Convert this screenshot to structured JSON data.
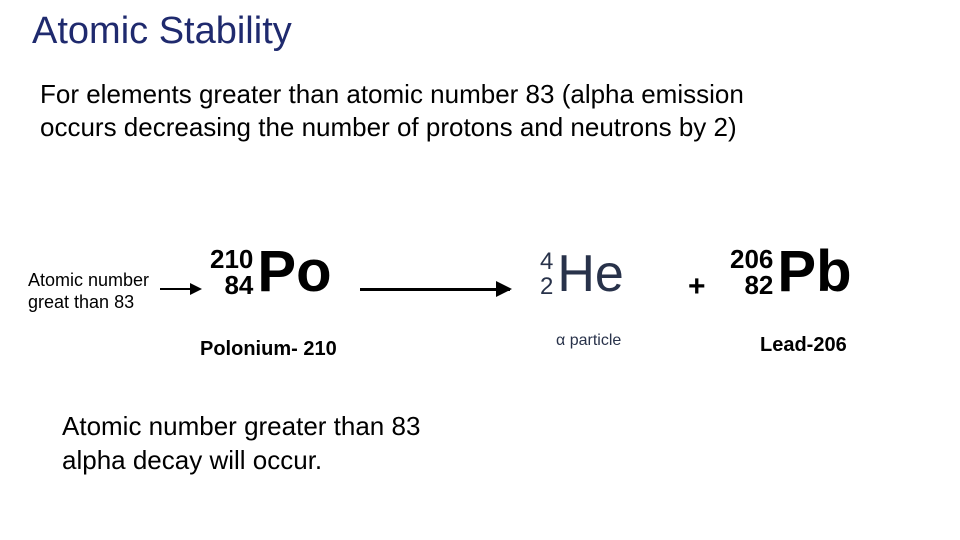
{
  "title": {
    "text": "Atomic Stability",
    "color": "#1f2a6e",
    "fontsize": 38
  },
  "paragraph": {
    "text": "For elements greater than atomic number 83 (alpha emission occurs decreasing the number of protons and neutrons by 2)",
    "fontsize": 26,
    "color": "#000000"
  },
  "equation": {
    "side_label": {
      "line1": "Atomic number",
      "line2": "great than 83",
      "fontsize": 18
    },
    "arrow_small": {
      "color": "#000000",
      "width": 40
    },
    "po": {
      "mass": "210",
      "atomic": "84",
      "symbol": "Po",
      "name": "Polonium- 210",
      "num_fontsize": 26,
      "sym_fontsize": 58,
      "name_fontsize": 20,
      "color": "#000000",
      "bold": true
    },
    "arrow_big": {
      "color": "#000000",
      "width": 150
    },
    "he": {
      "mass": "4",
      "atomic": "2",
      "symbol": "He",
      "name": "α particle",
      "num_fontsize": 24,
      "sym_fontsize": 52,
      "name_fontsize": 16,
      "color": "#28324a",
      "bold": false
    },
    "plus": {
      "text": "+",
      "fontsize": 30,
      "color": "#000000"
    },
    "pb": {
      "mass": "206",
      "atomic": "82",
      "symbol": "Pb",
      "name": "Lead-206",
      "num_fontsize": 26,
      "sym_fontsize": 58,
      "name_fontsize": 20,
      "color": "#000000",
      "bold": true
    },
    "background_color": "#ffffff"
  },
  "conclusion": {
    "line1": "Atomic number greater than 83",
    "line2": "alpha decay will occur.",
    "fontsize": 26,
    "color": "#000000"
  }
}
